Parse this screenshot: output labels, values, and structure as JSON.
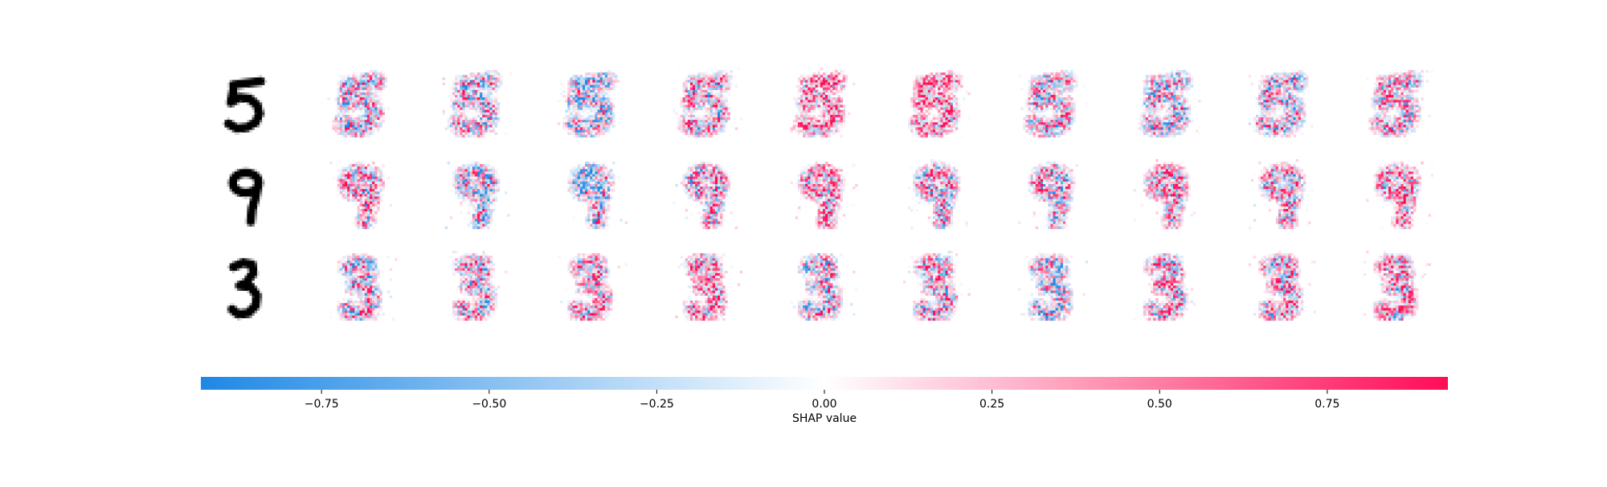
{
  "chart_data": {
    "type": "heatmap",
    "title": "",
    "rows": [
      {
        "input_digit": "5",
        "cells": [
          {
            "seed": 11,
            "bias": 0.05
          },
          {
            "seed": 12,
            "bias": 0.0
          },
          {
            "seed": 13,
            "bias": -0.15
          },
          {
            "seed": 14,
            "bias": 0.1
          },
          {
            "seed": 15,
            "bias": 0.35
          },
          {
            "seed": 16,
            "bias": 0.4
          },
          {
            "seed": 17,
            "bias": 0.1
          },
          {
            "seed": 18,
            "bias": -0.05
          },
          {
            "seed": 19,
            "bias": -0.05
          },
          {
            "seed": 20,
            "bias": 0.15
          }
        ]
      },
      {
        "input_digit": "9",
        "cells": [
          {
            "seed": 21,
            "bias": 0.2
          },
          {
            "seed": 22,
            "bias": -0.1
          },
          {
            "seed": 23,
            "bias": -0.15
          },
          {
            "seed": 24,
            "bias": 0.1
          },
          {
            "seed": 25,
            "bias": 0.25
          },
          {
            "seed": 26,
            "bias": 0.05
          },
          {
            "seed": 27,
            "bias": 0.05
          },
          {
            "seed": 28,
            "bias": 0.2
          },
          {
            "seed": 29,
            "bias": 0.15
          },
          {
            "seed": 30,
            "bias": 0.3
          }
        ]
      },
      {
        "input_digit": "3",
        "cells": [
          {
            "seed": 31,
            "bias": 0.0
          },
          {
            "seed": 32,
            "bias": 0.1
          },
          {
            "seed": 33,
            "bias": 0.15
          },
          {
            "seed": 34,
            "bias": 0.3
          },
          {
            "seed": 35,
            "bias": -0.05
          },
          {
            "seed": 36,
            "bias": 0.1
          },
          {
            "seed": 37,
            "bias": -0.1
          },
          {
            "seed": 38,
            "bias": 0.2
          },
          {
            "seed": 39,
            "bias": 0.2
          },
          {
            "seed": 40,
            "bias": 0.2
          }
        ]
      }
    ],
    "colorbar": {
      "label": "SHAP value",
      "range": [
        -0.93,
        0.93
      ],
      "ticks": [
        -0.75,
        -0.5,
        -0.25,
        0.0,
        0.25,
        0.5,
        0.75
      ],
      "tick_labels": [
        "−0.75",
        "−0.50",
        "−0.25",
        "0.00",
        "0.25",
        "0.50",
        "0.75"
      ],
      "neg_color": "#1e88e5",
      "mid_color": "#ffffff",
      "pos_color": "#ff0d57"
    },
    "grid": false,
    "legend": "colorbar-bottom"
  }
}
